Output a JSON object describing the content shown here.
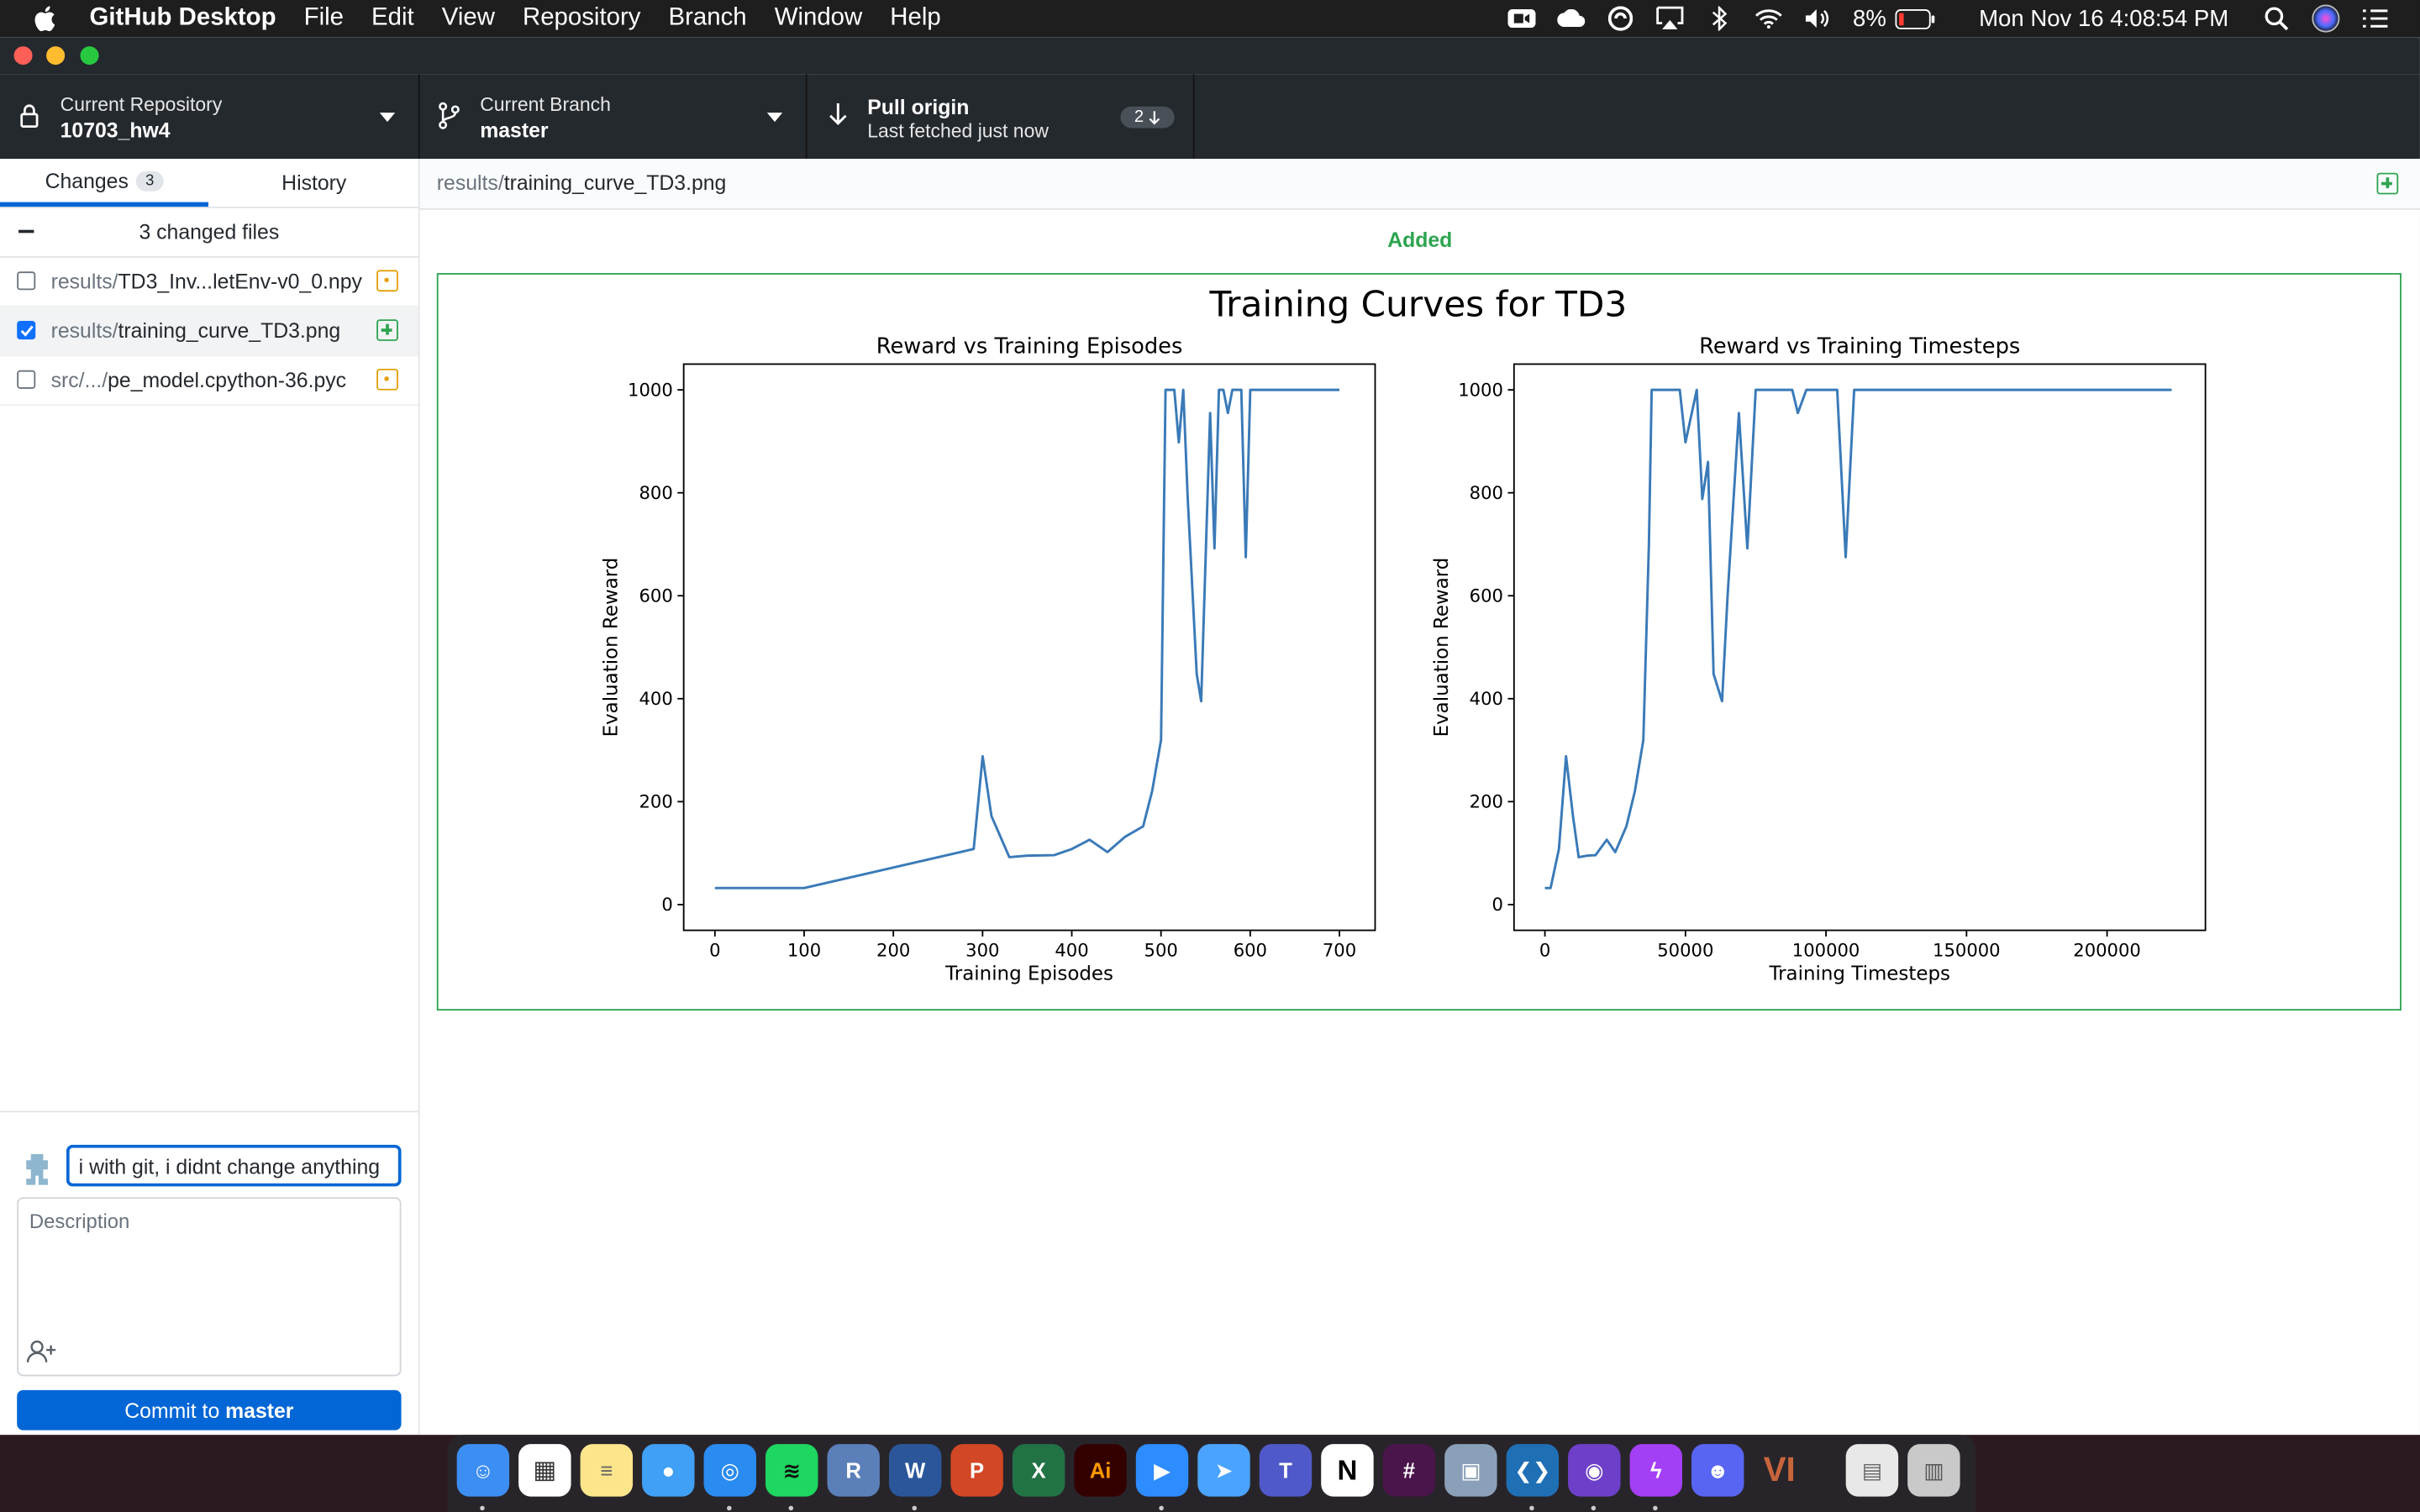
{
  "menubar": {
    "app_name": "GitHub Desktop",
    "items": [
      "File",
      "Edit",
      "View",
      "Repository",
      "Branch",
      "Window",
      "Help"
    ],
    "battery": "8%",
    "clock": "Mon Nov 16  4:08:54 PM"
  },
  "toolbar": {
    "repo_label": "Current Repository",
    "repo_value": "10703_hw4",
    "branch_label": "Current Branch",
    "branch_value": "master",
    "pull_title": "Pull origin",
    "pull_subtitle": "Last fetched just now",
    "pull_count": "2"
  },
  "sidebar": {
    "tabs": {
      "changes": "Changes",
      "changes_count": "3",
      "history": "History"
    },
    "changed_files_label": "3 changed files",
    "files": [
      {
        "dir": "results/",
        "name": "TD3_Inv...letEnv-v0_0.npy",
        "checked": false,
        "status": "modified"
      },
      {
        "dir": "results/",
        "name": "training_curve_TD3.png",
        "checked": true,
        "status": "added"
      },
      {
        "dir": "src/.../",
        "name": "pe_model.cpython-36.pyc",
        "checked": false,
        "status": "modified"
      }
    ],
    "commit": {
      "summary_value": "i with git, i didnt change anything",
      "description_placeholder": "Description",
      "button_prefix": "Commit to ",
      "button_branch": "master"
    }
  },
  "diff": {
    "path_dir": "results/",
    "path_file": "training_curve_TD3.png",
    "status_label": "Added"
  },
  "chart_data": {
    "type": "line",
    "title": "Training Curves for TD3",
    "subplots": [
      {
        "type": "line",
        "title": "Reward vs Training Episodes",
        "xlabel": "Training Episodes",
        "ylabel": "Evaluation Reward",
        "xlim": [
          -35,
          740
        ],
        "ylim": [
          -50,
          1050
        ],
        "xticks": [
          0,
          100,
          200,
          300,
          400,
          500,
          600,
          700
        ],
        "yticks": [
          0,
          200,
          400,
          600,
          800,
          1000
        ],
        "x": [
          0,
          100,
          290,
          300,
          310,
          330,
          350,
          380,
          400,
          420,
          440,
          460,
          480,
          490,
          500,
          505,
          515,
          520,
          525,
          530,
          540,
          545,
          555,
          560,
          565,
          570,
          575,
          580,
          585,
          590,
          595,
          600,
          610,
          650,
          700
        ],
        "y": [
          32,
          32,
          108,
          288,
          172,
          92,
          95,
          96,
          108,
          126,
          102,
          132,
          152,
          220,
          320,
          1000,
          1000,
          898,
          1000,
          788,
          448,
          395,
          955,
          692,
          1000,
          1000,
          955,
          1000,
          1000,
          1000,
          675,
          1000,
          1000,
          1000,
          1000
        ]
      },
      {
        "type": "line",
        "title": "Reward vs Training Timesteps",
        "xlabel": "Training Timesteps",
        "ylabel": "Evaluation Reward",
        "xlim": [
          -11000,
          235000
        ],
        "ylim": [
          -50,
          1050
        ],
        "xticks": [
          0,
          50000,
          100000,
          150000,
          200000
        ],
        "yticks": [
          0,
          200,
          400,
          600,
          800,
          1000
        ],
        "x": [
          0,
          2000,
          5000,
          7500,
          10000,
          12000,
          15000,
          18000,
          22000,
          25000,
          29000,
          32000,
          35000,
          37000,
          38000,
          48000,
          50000,
          54000,
          56000,
          58000,
          60000,
          63000,
          65000,
          69000,
          72000,
          75000,
          77000,
          78000,
          88000,
          90000,
          93000,
          104000,
          107000,
          110000,
          150000,
          200000,
          223000
        ],
        "y": [
          32,
          32,
          108,
          288,
          172,
          92,
          95,
          96,
          126,
          102,
          152,
          220,
          320,
          700,
          1000,
          1000,
          898,
          1000,
          788,
          860,
          448,
          395,
          600,
          955,
          692,
          1000,
          1000,
          1000,
          1000,
          955,
          1000,
          1000,
          675,
          1000,
          1000,
          1000,
          1000
        ]
      }
    ]
  },
  "colors": {
    "accent": "#0366d6",
    "added": "#2ea44f",
    "modified": "#e3a008",
    "line": "#3a7ab8"
  }
}
